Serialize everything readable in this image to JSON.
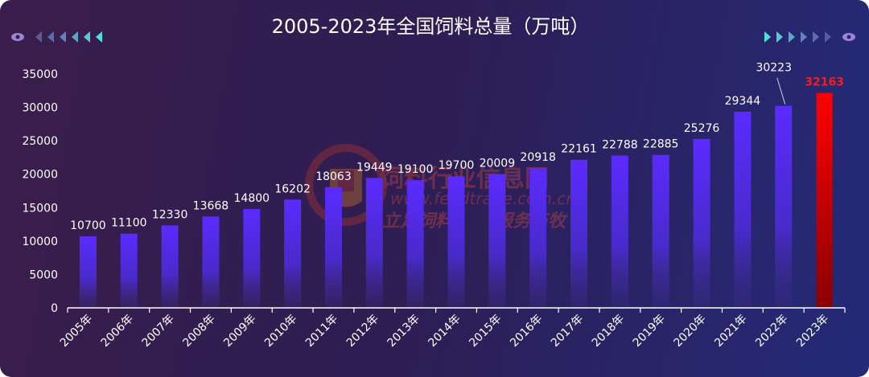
{
  "chart_data": {
    "type": "bar",
    "title": "2005-2023年全国饲料总量（万吨）",
    "categories": [
      "2005年",
      "2006年",
      "2007年",
      "2008年",
      "2009年",
      "2010年",
      "2011年",
      "2012年",
      "2013年",
      "2014年",
      "2015年",
      "2016年",
      "2017年",
      "2018年",
      "2019年",
      "2020年",
      "2021年",
      "2022年",
      "2023年"
    ],
    "values": [
      10700,
      11100,
      12330,
      13668,
      14800,
      16202,
      18063,
      19449,
      19100,
      19700,
      20009,
      20918,
      22161,
      22788,
      22885,
      25276,
      29344,
      30223,
      32163
    ],
    "ylim": [
      0,
      35000
    ],
    "yticks": [
      0,
      5000,
      10000,
      15000,
      20000,
      25000,
      30000,
      35000
    ],
    "grid": false,
    "highlight_index": 18,
    "colors": {
      "bar_top": "#5b2bff",
      "bar_bottom": "#3b2a80",
      "highlight_top": "#ff0000",
      "highlight_bottom": "#8a0000",
      "highlight_label": "#ff1a1a",
      "text": "#ffffff",
      "axis": "#ffffff"
    }
  },
  "watermark": {
    "line1": "饲料行业信息网",
    "line2": "www.feedtrade.com.cn",
    "line3_left": "立足饲料",
    "line3_right": "服务畜牧"
  },
  "decor": {
    "left_icons": [
      "eye-icon",
      "arrow-left-icon",
      "arrow-left-icon",
      "arrow-left-icon",
      "arrow-left-icon",
      "arrow-left-icon"
    ],
    "right_icons": [
      "arrow-right-icon",
      "arrow-right-icon",
      "arrow-right-icon",
      "arrow-right-icon",
      "arrow-right-icon",
      "eye-icon"
    ]
  }
}
